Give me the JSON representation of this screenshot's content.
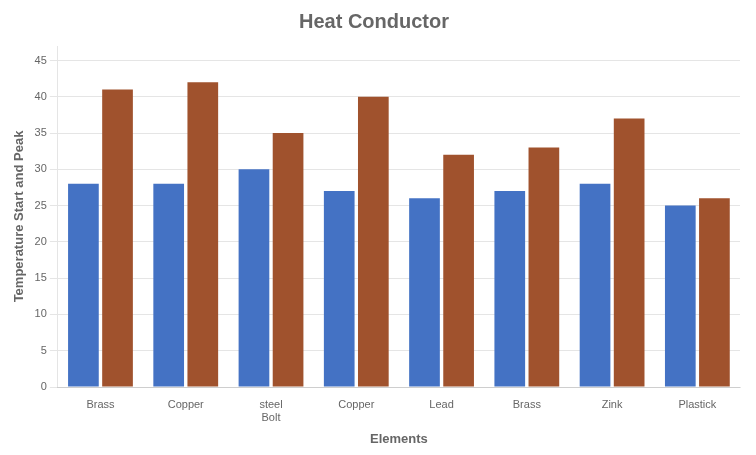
{
  "chart_data": {
    "type": "bar",
    "title": "Heat Conductor",
    "xlabel": "Elements",
    "ylabel": "Temperature Start and Peak",
    "categories": [
      "Brass",
      "Copper",
      "steel\nBolt",
      "Copper",
      "Lead",
      "Brass",
      "Zink",
      "Plastick"
    ],
    "series": [
      {
        "color": "#4472C4",
        "values": [
          28,
          28,
          30,
          27,
          26,
          27,
          28,
          25
        ]
      },
      {
        "color": "#A0522D",
        "values": [
          41,
          42,
          35,
          40,
          32,
          33,
          37,
          26
        ]
      }
    ],
    "ylim": [
      0,
      47
    ],
    "yticks": [
      0,
      5,
      10,
      15,
      20,
      25,
      30,
      35,
      40,
      45
    ],
    "grid": true
  }
}
